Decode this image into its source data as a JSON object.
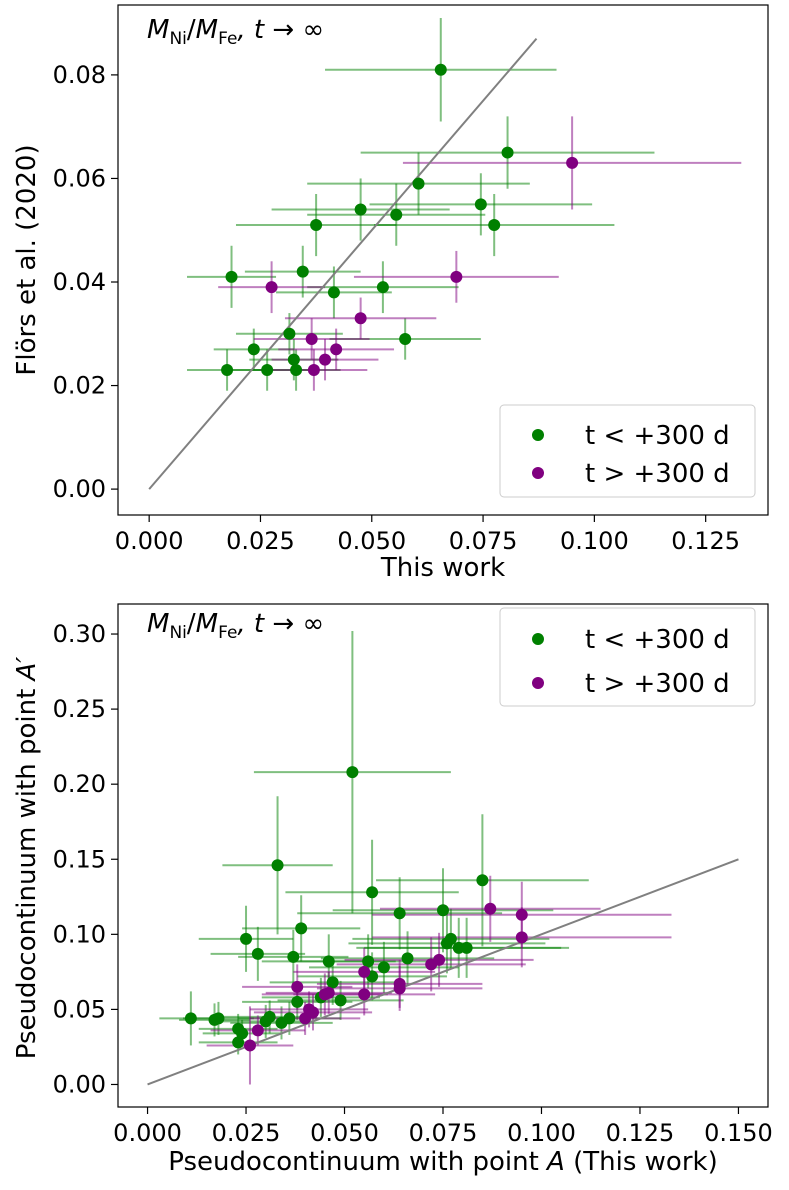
{
  "chart_data": [
    {
      "type": "scatter",
      "annotation": {
        "base": "M",
        "sub_a": "Ni",
        "slash": "/",
        "sub_b": "Fe",
        "suffix": ", t → ∞"
      },
      "xlabel": "This work",
      "ylabel": "Flörs et al. (2020)",
      "xlim": [
        -0.007,
        0.139
      ],
      "ylim": [
        -0.005,
        0.0935
      ],
      "xticks": [
        0.0,
        0.025,
        0.05,
        0.075,
        0.1,
        0.125
      ],
      "xtick_labels": [
        "0.000",
        "0.025",
        "0.050",
        "0.075",
        "0.100",
        "0.125"
      ],
      "yticks": [
        0.0,
        0.02,
        0.04,
        0.06,
        0.08
      ],
      "ytick_labels": [
        "0.00",
        "0.02",
        "0.04",
        "0.06",
        "0.08"
      ],
      "identity_line": {
        "x": [
          0,
          0.087
        ],
        "y": [
          0,
          0.087
        ],
        "color": "#808080"
      },
      "legend": {
        "position": "bottom-right",
        "entries": [
          {
            "label": "t < +300 d",
            "color": "#008000"
          },
          {
            "label": "t > +300 d",
            "color": "#800080"
          }
        ]
      },
      "series": [
        {
          "name": "t < +300 d",
          "color": "#008000",
          "points": [
            {
              "x": 0.0655,
              "y": 0.081,
              "xerr": 0.026,
              "yerr": 0.01
            },
            {
              "x": 0.0805,
              "y": 0.065,
              "xerr": 0.033,
              "yerr": 0.007
            },
            {
              "x": 0.0605,
              "y": 0.059,
              "xerr": 0.025,
              "yerr": 0.006
            },
            {
              "x": 0.0475,
              "y": 0.054,
              "xerr": 0.02,
              "yerr": 0.006
            },
            {
              "x": 0.0745,
              "y": 0.055,
              "xerr": 0.025,
              "yerr": 0.006
            },
            {
              "x": 0.0555,
              "y": 0.053,
              "xerr": 0.02,
              "yerr": 0.006
            },
            {
              "x": 0.0775,
              "y": 0.051,
              "xerr": 0.027,
              "yerr": 0.006
            },
            {
              "x": 0.0375,
              "y": 0.051,
              "xerr": 0.018,
              "yerr": 0.006
            },
            {
              "x": 0.0185,
              "y": 0.041,
              "xerr": 0.01,
              "yerr": 0.006
            },
            {
              "x": 0.0345,
              "y": 0.042,
              "xerr": 0.013,
              "yerr": 0.005
            },
            {
              "x": 0.0525,
              "y": 0.039,
              "xerr": 0.017,
              "yerr": 0.005
            },
            {
              "x": 0.0415,
              "y": 0.038,
              "xerr": 0.013,
              "yerr": 0.005
            },
            {
              "x": 0.0315,
              "y": 0.03,
              "xerr": 0.012,
              "yerr": 0.004
            },
            {
              "x": 0.0575,
              "y": 0.029,
              "xerr": 0.017,
              "yerr": 0.004
            },
            {
              "x": 0.0235,
              "y": 0.027,
              "xerr": 0.009,
              "yerr": 0.004
            },
            {
              "x": 0.0325,
              "y": 0.025,
              "xerr": 0.01,
              "yerr": 0.004
            },
            {
              "x": 0.0175,
              "y": 0.023,
              "xerr": 0.009,
              "yerr": 0.004
            },
            {
              "x": 0.0265,
              "y": 0.023,
              "xerr": 0.01,
              "yerr": 0.004
            },
            {
              "x": 0.033,
              "y": 0.023,
              "xerr": 0.01,
              "yerr": 0.004
            }
          ]
        },
        {
          "name": "t > +300 d",
          "color": "#800080",
          "points": [
            {
              "x": 0.095,
              "y": 0.063,
              "xerr": 0.038,
              "yerr": 0.009
            },
            {
              "x": 0.069,
              "y": 0.041,
              "xerr": 0.023,
              "yerr": 0.005
            },
            {
              "x": 0.0275,
              "y": 0.039,
              "xerr": 0.012,
              "yerr": 0.005
            },
            {
              "x": 0.0475,
              "y": 0.033,
              "xerr": 0.017,
              "yerr": 0.004
            },
            {
              "x": 0.0365,
              "y": 0.029,
              "xerr": 0.013,
              "yerr": 0.004
            },
            {
              "x": 0.042,
              "y": 0.027,
              "xerr": 0.013,
              "yerr": 0.004
            },
            {
              "x": 0.0395,
              "y": 0.025,
              "xerr": 0.012,
              "yerr": 0.004
            },
            {
              "x": 0.037,
              "y": 0.023,
              "xerr": 0.012,
              "yerr": 0.004
            }
          ]
        }
      ]
    },
    {
      "type": "scatter",
      "annotation": {
        "base": "M",
        "sub_a": "Ni",
        "slash": "/",
        "sub_b": "Fe",
        "suffix": ", t → ∞"
      },
      "xlabel_main": "Pseudocontinuum with point ",
      "xlabel_italic": "A",
      "xlabel_tail": " (This work)",
      "ylabel_main": "Pseudocontinuum with point ",
      "ylabel_italic": "A′",
      "xlim": [
        -0.0075,
        0.1575
      ],
      "ylim": [
        -0.015,
        0.32
      ],
      "xticks": [
        0.0,
        0.025,
        0.05,
        0.075,
        0.1,
        0.125,
        0.15
      ],
      "xtick_labels": [
        "0.000",
        "0.025",
        "0.050",
        "0.075",
        "0.100",
        "0.125",
        "0.150"
      ],
      "yticks": [
        0.0,
        0.05,
        0.1,
        0.15,
        0.2,
        0.25,
        0.3
      ],
      "ytick_labels": [
        "0.00",
        "0.05",
        "0.10",
        "0.15",
        "0.20",
        "0.25",
        "0.30"
      ],
      "identity_line": {
        "x": [
          0,
          0.15
        ],
        "y": [
          0,
          0.15
        ],
        "color": "#808080"
      },
      "legend": {
        "position": "top-right",
        "entries": [
          {
            "label": "t < +300 d",
            "color": "#008000"
          },
          {
            "label": "t > +300 d",
            "color": "#800080"
          }
        ]
      },
      "series": [
        {
          "name": "t < +300 d",
          "color": "#008000",
          "points": [
            {
              "x": 0.052,
              "y": 0.208,
              "xerr": 0.025,
              "yerr": 0.094
            },
            {
              "x": 0.033,
              "y": 0.146,
              "xerr": 0.014,
              "yerr": 0.046
            },
            {
              "x": 0.057,
              "y": 0.128,
              "xerr": 0.022,
              "yerr": 0.035
            },
            {
              "x": 0.085,
              "y": 0.136,
              "xerr": 0.027,
              "yerr": 0.044
            },
            {
              "x": 0.064,
              "y": 0.114,
              "xerr": 0.026,
              "yerr": 0.024
            },
            {
              "x": 0.075,
              "y": 0.116,
              "xerr": 0.028,
              "yerr": 0.028
            },
            {
              "x": 0.039,
              "y": 0.104,
              "xerr": 0.015,
              "yerr": 0.022
            },
            {
              "x": 0.025,
              "y": 0.097,
              "xerr": 0.012,
              "yerr": 0.022
            },
            {
              "x": 0.077,
              "y": 0.097,
              "xerr": 0.025,
              "yerr": 0.02
            },
            {
              "x": 0.076,
              "y": 0.094,
              "xerr": 0.025,
              "yerr": 0.02
            },
            {
              "x": 0.079,
              "y": 0.091,
              "xerr": 0.026,
              "yerr": 0.02
            },
            {
              "x": 0.081,
              "y": 0.091,
              "xerr": 0.026,
              "yerr": 0.02
            },
            {
              "x": 0.028,
              "y": 0.087,
              "xerr": 0.012,
              "yerr": 0.018
            },
            {
              "x": 0.037,
              "y": 0.085,
              "xerr": 0.014,
              "yerr": 0.018
            },
            {
              "x": 0.066,
              "y": 0.084,
              "xerr": 0.022,
              "yerr": 0.018
            },
            {
              "x": 0.046,
              "y": 0.082,
              "xerr": 0.017,
              "yerr": 0.018
            },
            {
              "x": 0.056,
              "y": 0.082,
              "xerr": 0.019,
              "yerr": 0.018
            },
            {
              "x": 0.06,
              "y": 0.078,
              "xerr": 0.019,
              "yerr": 0.017
            },
            {
              "x": 0.057,
              "y": 0.072,
              "xerr": 0.019,
              "yerr": 0.016
            },
            {
              "x": 0.047,
              "y": 0.068,
              "xerr": 0.016,
              "yerr": 0.015
            },
            {
              "x": 0.044,
              "y": 0.058,
              "xerr": 0.015,
              "yerr": 0.013
            },
            {
              "x": 0.049,
              "y": 0.056,
              "xerr": 0.016,
              "yerr": 0.013
            },
            {
              "x": 0.038,
              "y": 0.055,
              "xerr": 0.014,
              "yerr": 0.012
            },
            {
              "x": 0.011,
              "y": 0.044,
              "xerr": 0.008,
              "yerr": 0.018
            },
            {
              "x": 0.017,
              "y": 0.043,
              "xerr": 0.009,
              "yerr": 0.011
            },
            {
              "x": 0.018,
              "y": 0.044,
              "xerr": 0.009,
              "yerr": 0.011
            },
            {
              "x": 0.031,
              "y": 0.045,
              "xerr": 0.012,
              "yerr": 0.011
            },
            {
              "x": 0.036,
              "y": 0.044,
              "xerr": 0.013,
              "yerr": 0.011
            },
            {
              "x": 0.03,
              "y": 0.042,
              "xerr": 0.012,
              "yerr": 0.011
            },
            {
              "x": 0.034,
              "y": 0.041,
              "xerr": 0.013,
              "yerr": 0.011
            },
            {
              "x": 0.023,
              "y": 0.037,
              "xerr": 0.01,
              "yerr": 0.01
            },
            {
              "x": 0.024,
              "y": 0.034,
              "xerr": 0.01,
              "yerr": 0.009
            },
            {
              "x": 0.023,
              "y": 0.028,
              "xerr": 0.01,
              "yerr": 0.008
            }
          ]
        },
        {
          "name": "t > +300 d",
          "color": "#800080",
          "points": [
            {
              "x": 0.095,
              "y": 0.113,
              "xerr": 0.038,
              "yerr": 0.022
            },
            {
              "x": 0.087,
              "y": 0.117,
              "xerr": 0.028,
              "yerr": 0.022
            },
            {
              "x": 0.095,
              "y": 0.098,
              "xerr": 0.038,
              "yerr": 0.02
            },
            {
              "x": 0.074,
              "y": 0.083,
              "xerr": 0.024,
              "yerr": 0.018
            },
            {
              "x": 0.072,
              "y": 0.08,
              "xerr": 0.024,
              "yerr": 0.018
            },
            {
              "x": 0.064,
              "y": 0.067,
              "xerr": 0.021,
              "yerr": 0.016
            },
            {
              "x": 0.038,
              "y": 0.065,
              "xerr": 0.014,
              "yerr": 0.015
            },
            {
              "x": 0.064,
              "y": 0.064,
              "xerr": 0.021,
              "yerr": 0.015
            },
            {
              "x": 0.055,
              "y": 0.075,
              "xerr": 0.018,
              "yerr": 0.016
            },
            {
              "x": 0.055,
              "y": 0.06,
              "xerr": 0.018,
              "yerr": 0.014
            },
            {
              "x": 0.045,
              "y": 0.06,
              "xerr": 0.016,
              "yerr": 0.014
            },
            {
              "x": 0.046,
              "y": 0.061,
              "xerr": 0.016,
              "yerr": 0.014
            },
            {
              "x": 0.041,
              "y": 0.05,
              "xerr": 0.015,
              "yerr": 0.012
            },
            {
              "x": 0.042,
              "y": 0.048,
              "xerr": 0.015,
              "yerr": 0.012
            },
            {
              "x": 0.04,
              "y": 0.044,
              "xerr": 0.014,
              "yerr": 0.011
            },
            {
              "x": 0.028,
              "y": 0.036,
              "xerr": 0.012,
              "yerr": 0.01
            },
            {
              "x": 0.026,
              "y": 0.026,
              "xerr": 0.011,
              "yerr": 0.026
            }
          ]
        }
      ]
    }
  ]
}
